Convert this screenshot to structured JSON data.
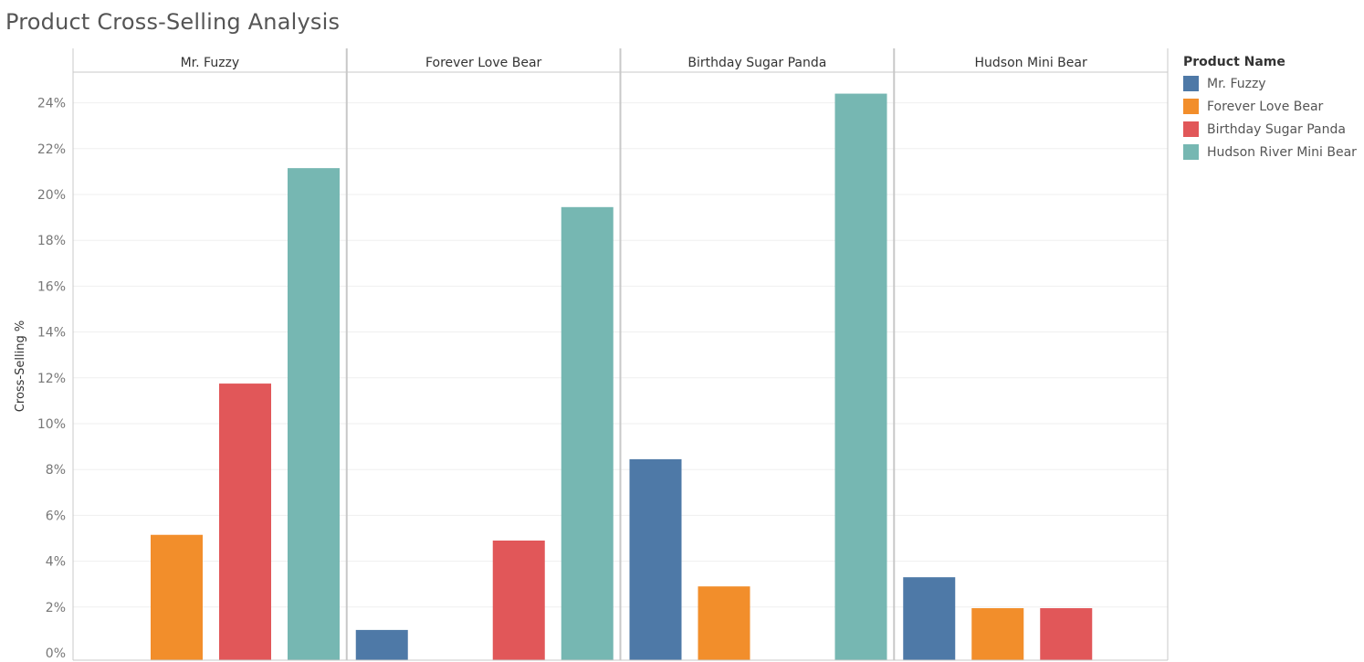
{
  "title": "Product Cross-Selling Analysis",
  "chart_data": {
    "type": "bar",
    "title": "Product Cross-Selling Analysis",
    "ylabel": "Cross-Selling %",
    "xlabel": "",
    "ylim": [
      0,
      25
    ],
    "yticks": [
      0,
      2,
      4,
      6,
      8,
      10,
      12,
      14,
      16,
      18,
      20,
      22,
      24
    ],
    "ytick_labels": [
      "0%",
      "2%",
      "4%",
      "6%",
      "8%",
      "10%",
      "12%",
      "14%",
      "16%",
      "18%",
      "20%",
      "22%",
      "24%"
    ],
    "grid": true,
    "legend_position": "right",
    "legend_title": "Product Name",
    "categories": [
      "Mr. Fuzzy",
      "Forever Love Bear",
      "Birthday Sugar Panda",
      "Hudson Mini Bear"
    ],
    "series": [
      {
        "name": "Mr. Fuzzy",
        "color": "#4e79a7",
        "values": [
          null,
          1.0,
          8.45,
          3.3
        ]
      },
      {
        "name": "Forever Love Bear",
        "color": "#f28e2b",
        "values": [
          5.15,
          null,
          2.9,
          1.95
        ]
      },
      {
        "name": "Birthday Sugar Panda",
        "color": "#e15759",
        "values": [
          11.75,
          4.9,
          null,
          1.95
        ]
      },
      {
        "name": "Hudson River Mini Bear",
        "color": "#76b7b2",
        "values": [
          21.15,
          19.45,
          24.4,
          null
        ]
      }
    ]
  }
}
